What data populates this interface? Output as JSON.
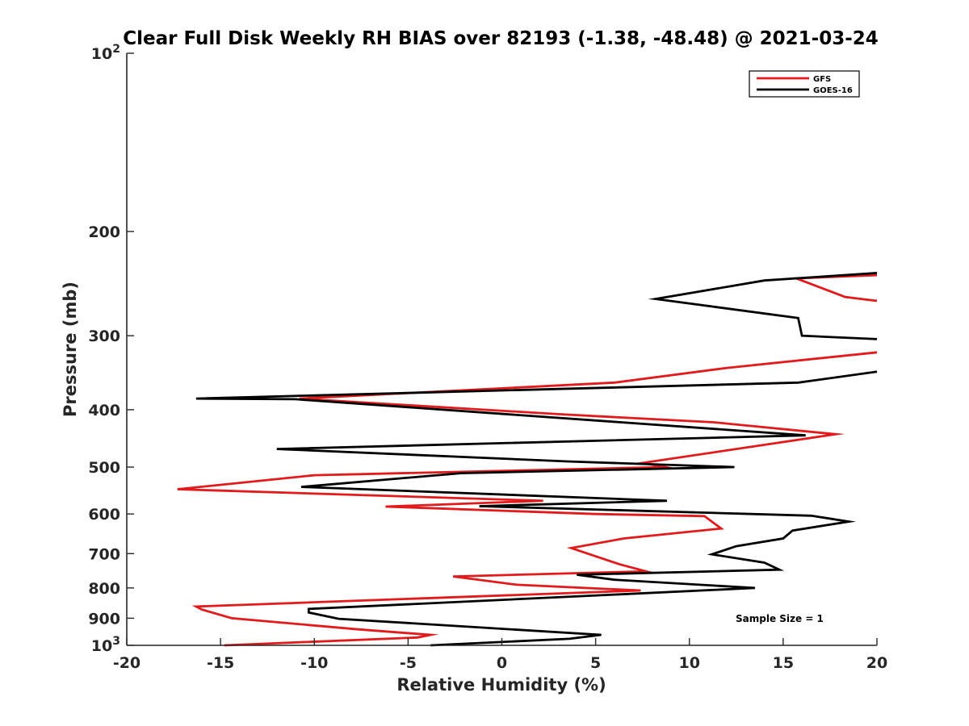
{
  "chart_data": {
    "type": "line",
    "title": "Clear Full Disk Weekly RH BIAS over 82193 (-1.38, -48.48) @ 2021-03-24",
    "xlabel": "Relative Humidity (%)",
    "ylabel": "Pressure (mb)",
    "xlim": [
      -20,
      20
    ],
    "ylim": [
      100,
      1000
    ],
    "yscale": "log",
    "y_reversed": true,
    "x_ticks": [
      -20,
      -15,
      -10,
      -5,
      0,
      5,
      10,
      15,
      20
    ],
    "x_tick_labels": [
      "-20",
      "-15",
      "-10",
      "-5",
      "0",
      "5",
      "10",
      "15",
      "20"
    ],
    "y_ticks": [
      100,
      200,
      300,
      400,
      500,
      600,
      700,
      800,
      900,
      1000
    ],
    "y_tick_labels": [
      "10^2",
      "200",
      "300",
      "400",
      "500",
      "600",
      "700",
      "800",
      "900",
      "10^3"
    ],
    "y_tick_major_base": "10",
    "y_tick_major_top_exp": "2",
    "y_tick_major_bottom_exp": "3",
    "grid": false,
    "legend_position": "top-right",
    "annotation": "Sample Size = 1",
    "series": [
      {
        "name": "GFS",
        "color": "#e31a1c",
        "x": [
          20,
          15.7,
          18.3,
          20,
          null,
          20,
          12,
          6,
          -10.8,
          -10.3,
          3,
          11.3,
          17.8,
          7.5,
          8.7,
          -10,
          -17.3,
          2.2,
          -6.2,
          5,
          10.8,
          11.7,
          6.5,
          3.7,
          6.3,
          7.7,
          -2.6,
          0.8,
          7.4,
          -16.3,
          -16,
          -14.4,
          -7.6,
          -3.8,
          -4.5,
          -14.8
        ],
        "y": [
          237,
          240,
          258,
          262,
          null,
          320,
          340,
          360,
          383,
          384,
          407,
          420,
          440,
          492,
          500,
          516,
          545,
          570,
          583,
          600,
          605,
          635,
          660,
          685,
          730,
          750,
          765,
          790,
          808,
          860,
          870,
          900,
          940,
          960,
          970,
          1000
        ]
      },
      {
        "name": "GOES-16",
        "color": "#000000",
        "x": [
          20,
          14,
          8.2,
          15.8,
          16,
          20,
          null,
          20,
          15.8,
          -16.3,
          -11,
          16.2,
          -12,
          3.5,
          12.4,
          -2.2,
          -10.7,
          8.8,
          -1.2,
          16.5,
          18.5,
          15.5,
          15,
          12.5,
          11.2,
          14,
          14.8,
          4,
          6,
          13.5,
          -10.3,
          -10.3,
          -8.7,
          5.3,
          3.6,
          -3.8
        ],
        "y": [
          235,
          242,
          260,
          280,
          300,
          304,
          null,
          345,
          360,
          383,
          384,
          442,
          466,
          489,
          500,
          512,
          540,
          570,
          582,
          604,
          618,
          640,
          660,
          680,
          702,
          725,
          745,
          760,
          775,
          800,
          868,
          880,
          902,
          960,
          975,
          1000
        ]
      }
    ]
  }
}
